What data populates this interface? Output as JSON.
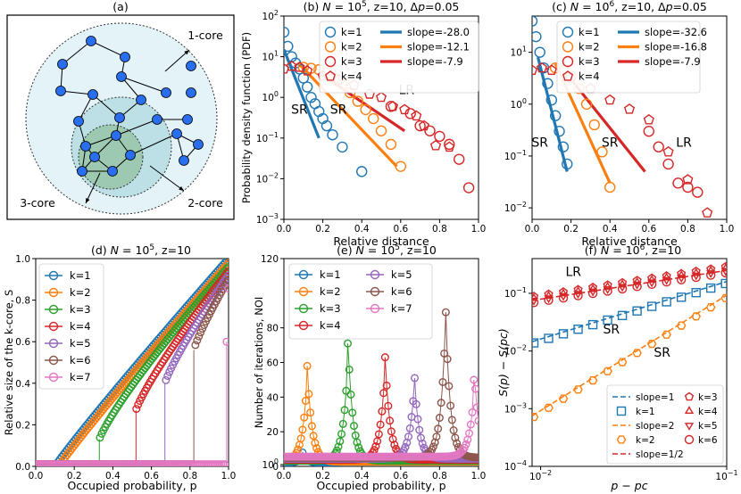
{
  "colors": [
    "#1f77b4",
    "#ff7f0e",
    "#2ca02c",
    "#d62728",
    "#9467bd",
    "#8c564b",
    "#e377c2"
  ],
  "chart_data": [
    {
      "id": "a",
      "type": "diagram",
      "title": "(a)",
      "labels": {
        "core1": "1-core",
        "core2": "2-core",
        "core3": "3-core"
      }
    },
    {
      "id": "b",
      "type": "scatter",
      "title": "(b) N = 10^5, z=10, Δp=0.05",
      "title_parts": {
        "a": "(b) ",
        "n": "N",
        "eq": " = 10",
        "sup": "5",
        "rest": ", z=10, Δ",
        "p": "p",
        "end": "=0.05"
      },
      "xlabel": "Relative distance",
      "ylabel": "Probability density function (PDF)",
      "xscale": "linear",
      "yscale": "log",
      "xlim": [
        0,
        1
      ],
      "ylim": [
        0.001,
        100
      ],
      "xticks": [
        "0.0",
        "0.2",
        "0.4",
        "0.6",
        "0.8",
        "1.0"
      ],
      "yticks": [
        "10-3",
        "10-2",
        "10-1",
        "100",
        "101",
        "102"
      ],
      "series": [
        {
          "name": "k=1",
          "marker": "circle",
          "color": 0,
          "x": [
            0.0,
            0.02,
            0.04,
            0.06,
            0.08,
            0.1,
            0.12,
            0.14,
            0.16,
            0.18,
            0.2,
            0.22,
            0.25,
            0.3,
            0.4
          ],
          "y": [
            40,
            18,
            10,
            7,
            5,
            3,
            1.8,
            1.0,
            0.7,
            0.45,
            0.3,
            0.2,
            0.12,
            0.06,
            0.015
          ]
        },
        {
          "name": "k=2",
          "marker": "circle",
          "color": 1,
          "x": [
            0.1,
            0.14,
            0.18,
            0.22,
            0.26,
            0.3,
            0.34,
            0.38,
            0.42,
            0.46,
            0.5,
            0.55,
            0.6
          ],
          "y": [
            5.5,
            5.2,
            4.8,
            4.0,
            3.0,
            2.1,
            1.3,
            0.8,
            0.5,
            0.3,
            0.15,
            0.07,
            0.02
          ]
        },
        {
          "name": "k=3",
          "marker": "circle",
          "color": 3,
          "x": [
            0.55,
            0.65,
            0.7,
            0.75,
            0.8,
            0.85,
            0.9,
            0.95
          ],
          "y": [
            0.6,
            0.4,
            0.2,
            0.15,
            0.11,
            0.07,
            0.03,
            0.006
          ]
        },
        {
          "name": "k=4",
          "marker": "pentagon",
          "color": 3,
          "x": [
            0.0,
            0.04,
            0.08,
            0.12,
            0.2,
            0.28,
            0.36,
            0.44,
            0.5,
            0.56,
            0.62,
            0.68,
            0.72,
            0.78,
            0.85
          ],
          "y": [
            5.0,
            5.8,
            5.5,
            4.5,
            3.4,
            2.7,
            2.0,
            1.2,
            1.0,
            0.6,
            0.5,
            0.35,
            0.2,
            0.065,
            0.06
          ]
        }
      ],
      "fits": [
        {
          "name": "slope=-28.0",
          "color": 0,
          "x": [
            0.0,
            0.18
          ],
          "y": [
            15,
            0.1
          ]
        },
        {
          "name": "slope=-12.1",
          "color": 1,
          "x": [
            0.08,
            0.58
          ],
          "y": [
            6.5,
            0.02
          ]
        },
        {
          "name": "slope=-7.9",
          "color": 3,
          "x": [
            0.18,
            0.62
          ],
          "y": [
            4,
            0.15
          ]
        }
      ],
      "annotations": [
        {
          "text": "SR",
          "x": 0.08,
          "y": 0.4
        },
        {
          "text": "SR",
          "x": 0.28,
          "y": 0.4
        },
        {
          "text": "LR",
          "x": 0.63,
          "y": 1.2
        }
      ]
    },
    {
      "id": "c",
      "type": "scatter",
      "title": "(c) N = 10^6, z=10, Δp=0.05",
      "title_parts": {
        "a": "(c) ",
        "n": "N",
        "eq": " = 10",
        "sup": "6",
        "rest": ", z=10, Δ",
        "p": "p",
        "end": "=0.05"
      },
      "xlabel": "Relative distance",
      "ylabel": "",
      "xscale": "linear",
      "yscale": "log",
      "xlim": [
        0,
        1
      ],
      "ylim": [
        0.006,
        50
      ],
      "xticks": [
        "0.0",
        "0.2",
        "0.4",
        "0.6",
        "0.8",
        "1.0"
      ],
      "yticks": [
        "10-2",
        "10-1",
        "100",
        "101"
      ],
      "series": [
        {
          "name": "k=1",
          "marker": "circle",
          "color": 0,
          "x": [
            0.0,
            0.02,
            0.04,
            0.06,
            0.08,
            0.1,
            0.12,
            0.14,
            0.16,
            0.18
          ],
          "y": [
            40,
            20,
            10,
            5,
            2.5,
            1.2,
            0.6,
            0.3,
            0.15,
            0.07
          ]
        },
        {
          "name": "k=2",
          "marker": "circle",
          "color": 1,
          "x": [
            0.12,
            0.16,
            0.2,
            0.24,
            0.28,
            0.32,
            0.36,
            0.4
          ],
          "y": [
            5,
            4.5,
            3.5,
            2.0,
            1.0,
            0.4,
            0.12,
            0.025
          ]
        },
        {
          "name": "k=3",
          "marker": "circle",
          "color": 3,
          "x": [
            0.6,
            0.65,
            0.7,
            0.75,
            0.8,
            0.85
          ],
          "y": [
            0.3,
            0.15,
            0.07,
            0.03,
            0.025,
            0.02
          ]
        },
        {
          "name": "k=4",
          "marker": "pentagon",
          "color": 3,
          "x": [
            0.0,
            0.05,
            0.1,
            0.2,
            0.3,
            0.4,
            0.5,
            0.6,
            0.7,
            0.8,
            0.9
          ],
          "y": [
            4.5,
            5,
            4.5,
            3.2,
            2.0,
            1.2,
            0.8,
            0.5,
            0.12,
            0.035,
            0.008
          ]
        }
      ],
      "fits": [
        {
          "name": "slope=-32.6",
          "color": 0,
          "x": [
            0.03,
            0.18
          ],
          "y": [
            8,
            0.05
          ]
        },
        {
          "name": "slope=-16.8",
          "color": 1,
          "x": [
            0.12,
            0.4
          ],
          "y": [
            6,
            0.03
          ]
        },
        {
          "name": "slope=-7.9",
          "color": 3,
          "x": [
            0.2,
            0.58
          ],
          "y": [
            3,
            0.05
          ]
        }
      ],
      "annotations": [
        {
          "text": "SR",
          "x": 0.04,
          "y": 0.15
        },
        {
          "text": "SR",
          "x": 0.4,
          "y": 0.15
        },
        {
          "text": "LR",
          "x": 0.78,
          "y": 0.15
        }
      ]
    },
    {
      "id": "d",
      "type": "scatter",
      "title": "(d) N = 10^5, z=10",
      "title_parts": {
        "a": "(d) ",
        "n": "N",
        "eq": " = 10",
        "sup": "5",
        "rest": ", z=10"
      },
      "xlabel": "Occupied probability, p",
      "ylabel": "Relative size of the k-core, S",
      "xscale": "linear",
      "yscale": "linear",
      "xlim": [
        0,
        1
      ],
      "ylim": [
        0,
        1
      ],
      "xticks": [
        "0.0",
        "0.2",
        "0.4",
        "0.6",
        "0.8",
        "1.0"
      ],
      "yticks": [
        "0.0",
        "0.2",
        "0.4",
        "0.6",
        "0.8",
        "1.0"
      ],
      "series": [
        {
          "name": "k=1",
          "color": 0,
          "pc": 0.1,
          "jump": 0.0
        },
        {
          "name": "k=2",
          "color": 1,
          "pc": 0.12,
          "jump": 0.0
        },
        {
          "name": "k=3",
          "color": 2,
          "pc": 0.33,
          "jump": 0.13
        },
        {
          "name": "k=4",
          "color": 3,
          "pc": 0.52,
          "jump": 0.27
        },
        {
          "name": "k=5",
          "color": 4,
          "pc": 0.67,
          "jump": 0.4
        },
        {
          "name": "k=6",
          "color": 5,
          "pc": 0.82,
          "jump": 0.56
        },
        {
          "name": "k=7",
          "color": 6,
          "pc": 0.99,
          "jump": 0.6
        }
      ]
    },
    {
      "id": "e",
      "type": "scatter",
      "title": "(e) N = 10^5, z=10",
      "title_parts": {
        "a": "(e) ",
        "n": "N",
        "eq": " = 10",
        "sup": "5",
        "rest": ", z=10"
      },
      "xlabel": "Occupied probability, p",
      "ylabel": "Number of iterations, NOI",
      "xscale": "linear",
      "yscale": "linear",
      "xlim": [
        0,
        1
      ],
      "ylim": [
        0,
        120
      ],
      "xticks": [
        "0.0",
        "0.2",
        "0.4",
        "0.6",
        "0.8",
        "1.0"
      ],
      "yticks": [
        "0",
        "20",
        "40",
        "60",
        "80",
        "100",
        "120"
      ],
      "series": [
        {
          "name": "k=1",
          "color": 0,
          "pc": 0.1,
          "peak": 8
        },
        {
          "name": "k=2",
          "color": 1,
          "pc": 0.12,
          "peak": 58
        },
        {
          "name": "k=3",
          "color": 2,
          "pc": 0.33,
          "peak": 71
        },
        {
          "name": "k=4",
          "color": 3,
          "pc": 0.52,
          "peak": 63
        },
        {
          "name": "k=5",
          "color": 4,
          "pc": 0.67,
          "peak": 51
        },
        {
          "name": "k=6",
          "color": 5,
          "pc": 0.83,
          "peak": 89
        },
        {
          "name": "k=7",
          "color": 6,
          "pc": 0.98,
          "peak": 50
        }
      ]
    },
    {
      "id": "f",
      "type": "scatter",
      "title": "(f) N = 10^6, z=10",
      "title_parts": {
        "a": "(f) ",
        "n": "N",
        "eq": " = 10",
        "sup": "6",
        "rest": ", z=10"
      },
      "xlabel": "p − pc",
      "ylabel": "S(p) − S(pc)",
      "xscale": "log",
      "yscale": "log",
      "xlim": [
        0.009,
        0.1
      ],
      "ylim": [
        0.0001,
        0.4
      ],
      "xticks": [
        "10-2",
        "10-1"
      ],
      "yticks": [
        "10-4",
        "10-3",
        "10-2",
        "10-1"
      ],
      "fits": [
        {
          "name": "slope=1",
          "color": 0,
          "x": [
            0.009,
            0.1
          ],
          "y": [
            0.0145,
            0.16
          ]
        },
        {
          "name": "slope=2",
          "color": 1,
          "x": [
            0.009,
            0.1
          ],
          "y": [
            0.00075,
            0.093
          ]
        },
        {
          "name": "slope=1/2",
          "color": 3,
          "x": [
            0.009,
            0.1
          ],
          "y": [
            0.075,
            0.25
          ]
        }
      ],
      "series": [
        {
          "name": "k=1",
          "marker": "square",
          "color": 0,
          "a": 1.5,
          "b": 1,
          "off": 1
        },
        {
          "name": "k=2",
          "marker": "hexagon",
          "color": 1,
          "a": 8.5,
          "b": 2,
          "off": 1
        },
        {
          "name": "k=3",
          "marker": "pentagon",
          "color": 3,
          "a": 0.82,
          "b": 0.5,
          "off": 1.12
        },
        {
          "name": "k=4",
          "marker": "triangle-up",
          "color": 3,
          "a": 0.82,
          "b": 0.5,
          "off": 1.04
        },
        {
          "name": "k=5",
          "marker": "triangle-down",
          "color": 3,
          "a": 0.82,
          "b": 0.5,
          "off": 0.96
        },
        {
          "name": "k=6",
          "marker": "circle",
          "color": 3,
          "a": 0.82,
          "b": 0.5,
          "off": 0.88
        }
      ],
      "annotations": [
        {
          "text": "LR",
          "x": 0.015,
          "y": 0.2
        },
        {
          "text": "SR",
          "x": 0.024,
          "y": 0.02
        },
        {
          "text": "SR",
          "x": 0.045,
          "y": 0.008
        }
      ]
    }
  ]
}
